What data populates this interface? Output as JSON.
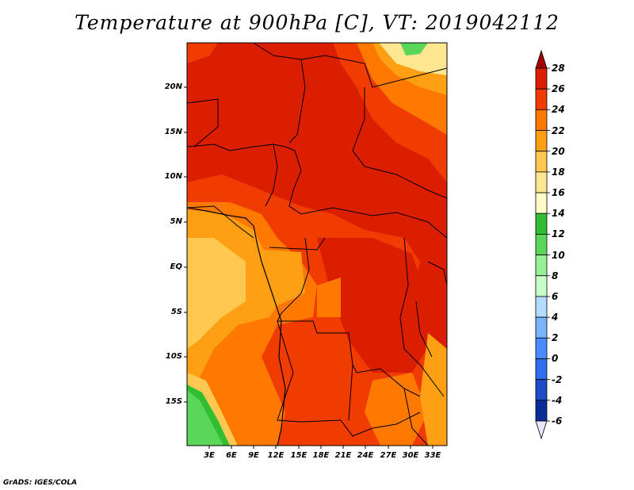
{
  "title": "Temperature at 900hPa [C], VT: 2019042112",
  "credit": "GrADS: IGES/COLA",
  "lat_labels": [
    "20N",
    "15N",
    "10N",
    "5N",
    "EQ",
    "5S",
    "10S",
    "15S"
  ],
  "lon_labels": [
    "3E",
    "6E",
    "9E",
    "12E",
    "15E",
    "18E",
    "21E",
    "24E",
    "27E",
    "30E",
    "33E"
  ],
  "colorbar": {
    "labels": [
      "28",
      "26",
      "24",
      "22",
      "20",
      "18",
      "16",
      "14",
      "12",
      "10",
      "8",
      "6",
      "4",
      "2",
      "0",
      "-2",
      "-4",
      "-6"
    ],
    "colors": [
      "#a50000",
      "#dc1e00",
      "#f03c00",
      "#ff7800",
      "#ffa014",
      "#ffc850",
      "#ffe690",
      "#fffac8",
      "#32be32",
      "#5ad75a",
      "#96f096",
      "#c8ffc8",
      "#b4dcff",
      "#78b4ff",
      "#4a8cff",
      "#2e6ef0",
      "#1e4bc8",
      "#0c2c98",
      "#000a50"
    ]
  },
  "map_colors": {
    "c28": "#dc1e00",
    "c26": "#f03c00",
    "c24": "#ff7800",
    "c22": "#ffa014",
    "c20": "#ffc850",
    "c18": "#ffe690",
    "c14": "#32be32",
    "c12": "#5ad75a",
    "c10": "#96f096"
  }
}
